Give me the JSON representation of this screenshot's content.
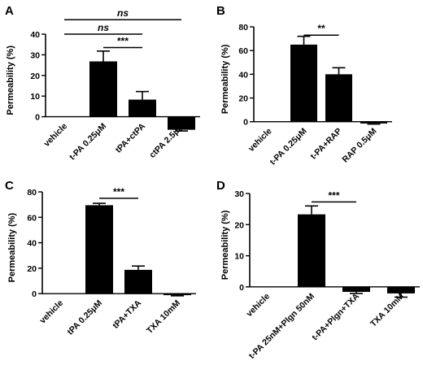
{
  "chart_data": [
    {
      "panel": "A",
      "type": "bar",
      "ylabel": "Permeability (%)",
      "ylim": [
        -10,
        40
      ],
      "yticks": [
        0,
        10,
        20,
        30,
        40
      ],
      "categories": [
        "vehicle",
        "t-PA 0.25μM",
        "tPA+ctPA",
        "ctPA 2.5μM"
      ],
      "values": [
        0,
        26.8,
        8.3,
        -6.3
      ],
      "errors": [
        0,
        5.0,
        3.9,
        0.6
      ],
      "significance": [
        {
          "from": 0,
          "to": 3,
          "label": "ns",
          "italic": true,
          "y": 47
        },
        {
          "from": 0,
          "to": 2,
          "label": "ns",
          "italic": true,
          "y": 40
        },
        {
          "from": 1,
          "to": 2,
          "label": "***",
          "italic": false,
          "y": 33.5
        }
      ]
    },
    {
      "panel": "B",
      "type": "bar",
      "ylabel": "Permeability (%)",
      "ylim": [
        -5,
        80
      ],
      "yticks": [
        0,
        20,
        40,
        60,
        80
      ],
      "categories": [
        "vehicle",
        "t-PA 0.25μM",
        "t-PA+RAP",
        "RAP 0.5μM"
      ],
      "values": [
        0,
        65,
        40,
        -1.5
      ],
      "errors": [
        0,
        7,
        5.5,
        0.5
      ],
      "significance": [
        {
          "from": 1,
          "to": 2,
          "label": "**",
          "italic": false,
          "y": 73
        }
      ]
    },
    {
      "panel": "C",
      "type": "bar",
      "ylabel": "Permeability (%)",
      "ylim": [
        -5,
        80
      ],
      "yticks": [
        0,
        20,
        40,
        60,
        80
      ],
      "categories": [
        "vehicle",
        "tPA 0.25μM",
        "tPA+TXA",
        "TXA 10mM"
      ],
      "values": [
        0,
        69.5,
        18.7,
        -1.2
      ],
      "errors": [
        0,
        1.5,
        3.0,
        0.5
      ],
      "significance": [
        {
          "from": 1,
          "to": 2,
          "label": "***",
          "italic": false,
          "y": 75
        }
      ]
    },
    {
      "panel": "D",
      "type": "bar",
      "ylabel": "Permeability (%)",
      "ylim": [
        -5,
        30
      ],
      "yticks": [
        0,
        10,
        20,
        30
      ],
      "categories": [
        "vehicle",
        "t-PA 25nM+Plgn 50nM",
        "t-PA+Plgn+TXA",
        "TXA 10mM"
      ],
      "values": [
        0,
        23.3,
        -1.6,
        -2.1
      ],
      "errors": [
        0,
        2.7,
        0.5,
        1.2
      ],
      "significance": [
        {
          "from": 1,
          "to": 2,
          "label": "***",
          "italic": false,
          "y": 27.3
        }
      ]
    }
  ]
}
